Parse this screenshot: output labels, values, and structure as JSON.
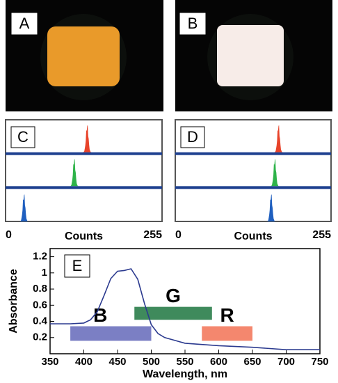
{
  "photos": [
    {
      "label": "A"
    },
    {
      "label": "B"
    }
  ],
  "chart_data": [
    {
      "type": "peaks",
      "label": "C",
      "x_label": "Counts",
      "xlim": [
        0,
        255
      ],
      "xticks": [
        0,
        255
      ],
      "series": [
        {
          "color": "#e8432a",
          "peak": 133
        },
        {
          "color": "#2fb34a",
          "peak": 112
        },
        {
          "color": "#1f5fbf",
          "peak": 30
        }
      ]
    },
    {
      "type": "peaks",
      "label": "D",
      "x_label": "Counts",
      "xlim": [
        0,
        255
      ],
      "xticks": [
        0,
        255
      ],
      "series": [
        {
          "color": "#e8432a",
          "peak": 169
        },
        {
          "color": "#2fb34a",
          "peak": 163
        },
        {
          "color": "#1f5fbf",
          "peak": 157
        }
      ]
    },
    {
      "type": "line",
      "label": "E",
      "x_label": "Wavelength, nm",
      "y_label": "Absorbance",
      "xlim": [
        350,
        750
      ],
      "xticks": [
        350,
        400,
        450,
        500,
        550,
        600,
        650,
        700,
        750
      ],
      "ylim": [
        0,
        1.3
      ],
      "yticks": [
        0.2,
        0.4,
        0.6,
        0.8,
        1.0,
        1.2
      ],
      "x": [
        350,
        380,
        400,
        410,
        420,
        430,
        440,
        450,
        460,
        470,
        480,
        490,
        500,
        510,
        520,
        550,
        600,
        650,
        700,
        750
      ],
      "series": [
        {
          "color": "#2b3a8f",
          "values": [
            0.37,
            0.37,
            0.38,
            0.42,
            0.52,
            0.72,
            0.93,
            1.02,
            1.03,
            1.05,
            0.92,
            0.62,
            0.36,
            0.25,
            0.2,
            0.13,
            0.1,
            0.08,
            0.05,
            0.05
          ]
        }
      ],
      "bands": [
        {
          "name": "B",
          "color": "#7b7fc4",
          "text_color": "#1f4fa0",
          "x": [
            380,
            500
          ],
          "y": [
            0.16,
            0.34
          ]
        },
        {
          "name": "G",
          "color": "#3f8a5c",
          "text_color": "#2e7a3e",
          "x": [
            475,
            590
          ],
          "y": [
            0.42,
            0.58
          ]
        },
        {
          "name": "R",
          "color": "#f4876e",
          "text_color": "#e0521f",
          "x": [
            575,
            650
          ],
          "y": [
            0.16,
            0.34
          ]
        }
      ]
    }
  ]
}
